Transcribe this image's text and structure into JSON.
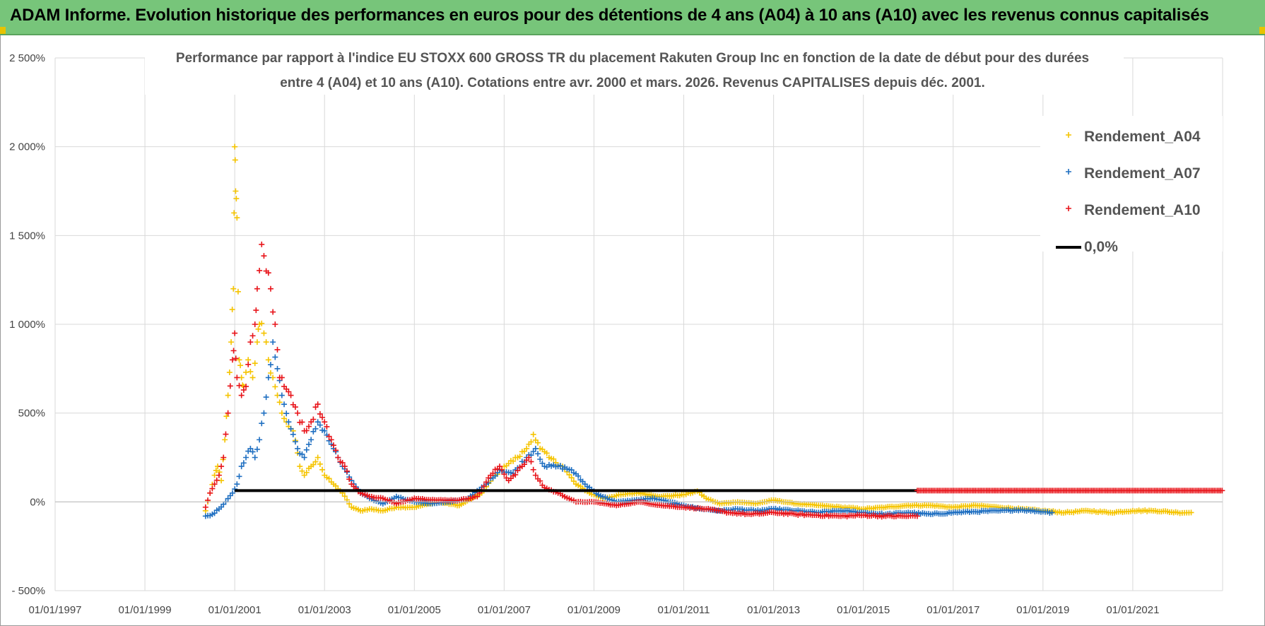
{
  "banner": {
    "title": "ADAM Informe. Evolution historique des performances en euros pour des détentions de 4 ans (A04) à 10 ans (A10) avec les revenus connus capitalisés"
  },
  "colors": {
    "banner_bg": "#77c57a",
    "A04": "#f5c400",
    "A07": "#1f6fc1",
    "A10": "#e8141a",
    "zero_line": "#000000"
  },
  "chart_data": {
    "type": "scatter",
    "title_lines": [
      "Performance par rapport à l'indice EU STOXX 600 GROSS TR  du placement Rakuten Group Inc en fonction de la date de début pour des durées",
      "entre 4 (A04) et 10 ans (A10). Cotations entre avr. 2000 et mars. 2026. Revenus CAPITALISES depuis déc. 2001."
    ],
    "xlabel": "",
    "ylabel": "",
    "x_ticks": [
      "01/01/1997",
      "01/01/1999",
      "01/01/2001",
      "01/01/2003",
      "01/01/2005",
      "01/01/2007",
      "01/01/2009",
      "01/01/2011",
      "01/01/2013",
      "01/01/2015",
      "01/01/2017",
      "01/01/2019",
      "01/01/2021"
    ],
    "x_range": [
      1997.0,
      2023.0
    ],
    "y_ticks": [
      "- 500%",
      "0%",
      "500%",
      "1 000%",
      "1 500%",
      "2 000%",
      "2 500%"
    ],
    "ylim": [
      -500,
      2500
    ],
    "grid": true,
    "legend_position": "top-right",
    "series": [
      {
        "name": "Rendement_A04",
        "marker": "+",
        "points": [
          [
            2000.35,
            -50
          ],
          [
            2000.45,
            50
          ],
          [
            2000.55,
            150
          ],
          [
            2000.62,
            200
          ],
          [
            2000.7,
            120
          ],
          [
            2000.78,
            350
          ],
          [
            2000.85,
            600
          ],
          [
            2000.92,
            900
          ],
          [
            2000.97,
            1200
          ],
          [
            2001.0,
            2000
          ],
          [
            2001.02,
            1750
          ],
          [
            2001.05,
            1600
          ],
          [
            2001.1,
            800
          ],
          [
            2001.15,
            700
          ],
          [
            2001.2,
            650
          ],
          [
            2001.3,
            800
          ],
          [
            2001.4,
            700
          ],
          [
            2001.5,
            900
          ],
          [
            2001.55,
            1000
          ],
          [
            2001.65,
            950
          ],
          [
            2001.75,
            800
          ],
          [
            2001.85,
            700
          ],
          [
            2001.95,
            600
          ],
          [
            2002.05,
            500
          ],
          [
            2002.15,
            450
          ],
          [
            2002.3,
            400
          ],
          [
            2002.45,
            200
          ],
          [
            2002.55,
            150
          ],
          [
            2002.7,
            200
          ],
          [
            2002.85,
            250
          ],
          [
            2003.0,
            150
          ],
          [
            2003.2,
            100
          ],
          [
            2003.4,
            50
          ],
          [
            2003.6,
            -30
          ],
          [
            2003.8,
            -50
          ],
          [
            2004.0,
            -40
          ],
          [
            2004.3,
            -50
          ],
          [
            2004.6,
            -30
          ],
          [
            2005.0,
            -30
          ],
          [
            2005.5,
            0
          ],
          [
            2006.0,
            -20
          ],
          [
            2006.5,
            50
          ],
          [
            2006.8,
            150
          ],
          [
            2007.0,
            200
          ],
          [
            2007.3,
            250
          ],
          [
            2007.5,
            300
          ],
          [
            2007.65,
            380
          ],
          [
            2007.8,
            300
          ],
          [
            2008.0,
            250
          ],
          [
            2008.3,
            200
          ],
          [
            2008.6,
            100
          ],
          [
            2008.9,
            50
          ],
          [
            2009.2,
            20
          ],
          [
            2009.6,
            40
          ],
          [
            2010.0,
            50
          ],
          [
            2010.5,
            30
          ],
          [
            2011.0,
            40
          ],
          [
            2011.3,
            60
          ],
          [
            2011.5,
            20
          ],
          [
            2011.8,
            -10
          ],
          [
            2012.2,
            0
          ],
          [
            2012.6,
            -10
          ],
          [
            2013.0,
            10
          ],
          [
            2013.5,
            -10
          ],
          [
            2014.0,
            -20
          ],
          [
            2014.5,
            -30
          ],
          [
            2015.0,
            -40
          ],
          [
            2015.5,
            -30
          ],
          [
            2016.0,
            -20
          ],
          [
            2016.5,
            -20
          ],
          [
            2017.0,
            -30
          ],
          [
            2017.5,
            -20
          ],
          [
            2018.0,
            -30
          ],
          [
            2018.5,
            -40
          ],
          [
            2019.0,
            -50
          ],
          [
            2019.5,
            -60
          ],
          [
            2020.0,
            -50
          ],
          [
            2020.5,
            -60
          ],
          [
            2021.0,
            -50
          ],
          [
            2021.5,
            -50
          ],
          [
            2022.0,
            -60
          ],
          [
            2022.3,
            -60
          ]
        ]
      },
      {
        "name": "Rendement_A07",
        "marker": "+",
        "points": [
          [
            2000.35,
            -80
          ],
          [
            2000.5,
            -70
          ],
          [
            2000.65,
            -40
          ],
          [
            2000.8,
            0
          ],
          [
            2000.95,
            50
          ],
          [
            2001.05,
            100
          ],
          [
            2001.15,
            200
          ],
          [
            2001.25,
            250
          ],
          [
            2001.35,
            300
          ],
          [
            2001.45,
            250
          ],
          [
            2001.55,
            350
          ],
          [
            2001.65,
            500
          ],
          [
            2001.75,
            700
          ],
          [
            2001.85,
            900
          ],
          [
            2001.95,
            750
          ],
          [
            2002.05,
            600
          ],
          [
            2002.2,
            450
          ],
          [
            2002.4,
            300
          ],
          [
            2002.55,
            250
          ],
          [
            2002.7,
            350
          ],
          [
            2002.85,
            450
          ],
          [
            2003.0,
            400
          ],
          [
            2003.2,
            300
          ],
          [
            2003.4,
            200
          ],
          [
            2003.6,
            120
          ],
          [
            2003.8,
            50
          ],
          [
            2004.0,
            20
          ],
          [
            2004.3,
            -10
          ],
          [
            2004.6,
            30
          ],
          [
            2005.0,
            0
          ],
          [
            2005.4,
            -10
          ],
          [
            2005.8,
            0
          ],
          [
            2006.2,
            20
          ],
          [
            2006.6,
            100
          ],
          [
            2006.9,
            180
          ],
          [
            2007.2,
            160
          ],
          [
            2007.5,
            250
          ],
          [
            2007.7,
            300
          ],
          [
            2007.9,
            200
          ],
          [
            2008.2,
            200
          ],
          [
            2008.5,
            180
          ],
          [
            2008.8,
            100
          ],
          [
            2009.1,
            40
          ],
          [
            2009.5,
            0
          ],
          [
            2009.9,
            10
          ],
          [
            2010.3,
            20
          ],
          [
            2010.7,
            0
          ],
          [
            2011.0,
            -20
          ],
          [
            2011.4,
            -40
          ],
          [
            2011.8,
            -50
          ],
          [
            2012.2,
            -40
          ],
          [
            2012.6,
            -50
          ],
          [
            2013.0,
            -40
          ],
          [
            2013.5,
            -50
          ],
          [
            2014.0,
            -60
          ],
          [
            2014.5,
            -50
          ],
          [
            2015.0,
            -60
          ],
          [
            2015.5,
            -70
          ],
          [
            2016.0,
            -60
          ],
          [
            2016.5,
            -70
          ],
          [
            2017.0,
            -60
          ],
          [
            2017.5,
            -55
          ],
          [
            2018.0,
            -50
          ],
          [
            2018.5,
            -45
          ],
          [
            2019.0,
            -55
          ],
          [
            2019.2,
            -60
          ]
        ]
      },
      {
        "name": "Rendement_A10",
        "marker": "+",
        "points": [
          [
            2000.35,
            -30
          ],
          [
            2000.45,
            50
          ],
          [
            2000.55,
            100
          ],
          [
            2000.65,
            150
          ],
          [
            2000.75,
            250
          ],
          [
            2000.85,
            500
          ],
          [
            2000.95,
            800
          ],
          [
            2001.0,
            950
          ],
          [
            2001.05,
            700
          ],
          [
            2001.15,
            600
          ],
          [
            2001.25,
            650
          ],
          [
            2001.35,
            900
          ],
          [
            2001.45,
            1000
          ],
          [
            2001.5,
            1200
          ],
          [
            2001.6,
            1450
          ],
          [
            2001.7,
            1300
          ],
          [
            2001.8,
            1200
          ],
          [
            2001.9,
            1000
          ],
          [
            2002.0,
            700
          ],
          [
            2002.1,
            650
          ],
          [
            2002.25,
            600
          ],
          [
            2002.4,
            500
          ],
          [
            2002.55,
            400
          ],
          [
            2002.7,
            450
          ],
          [
            2002.85,
            550
          ],
          [
            2003.0,
            450
          ],
          [
            2003.15,
            350
          ],
          [
            2003.3,
            250
          ],
          [
            2003.45,
            200
          ],
          [
            2003.6,
            100
          ],
          [
            2003.8,
            50
          ],
          [
            2004.0,
            30
          ],
          [
            2004.3,
            20
          ],
          [
            2004.6,
            -10
          ],
          [
            2005.0,
            20
          ],
          [
            2005.5,
            10
          ],
          [
            2006.0,
            10
          ],
          [
            2006.4,
            30
          ],
          [
            2006.7,
            150
          ],
          [
            2006.9,
            200
          ],
          [
            2007.1,
            120
          ],
          [
            2007.4,
            200
          ],
          [
            2007.55,
            250
          ],
          [
            2007.7,
            150
          ],
          [
            2007.9,
            80
          ],
          [
            2008.2,
            50
          ],
          [
            2008.6,
            0
          ],
          [
            2009.0,
            0
          ],
          [
            2009.5,
            -20
          ],
          [
            2010.0,
            0
          ],
          [
            2010.5,
            -20
          ],
          [
            2011.0,
            -30
          ],
          [
            2011.5,
            -40
          ],
          [
            2012.0,
            -60
          ],
          [
            2012.5,
            -70
          ],
          [
            2013.0,
            -60
          ],
          [
            2013.5,
            -70
          ],
          [
            2014.0,
            -75
          ],
          [
            2014.5,
            -80
          ],
          [
            2015.0,
            -75
          ],
          [
            2015.5,
            -80
          ],
          [
            2016.0,
            -80
          ],
          [
            2016.2,
            -80
          ]
        ]
      },
      {
        "name": "0,0%",
        "marker": "line",
        "points": [
          [
            2001.0,
            0
          ],
          [
            2016.2,
            0
          ]
        ]
      }
    ],
    "legend": [
      {
        "label": "Rendement_A04",
        "marker": "+",
        "color": "#f5c400"
      },
      {
        "label": "Rendement_A07",
        "marker": "+",
        "color": "#1f6fc1"
      },
      {
        "label": "Rendement_A10",
        "marker": "+",
        "color": "#e8141a"
      },
      {
        "label": "0,0%",
        "marker": "line",
        "color": "#000000"
      }
    ]
  }
}
